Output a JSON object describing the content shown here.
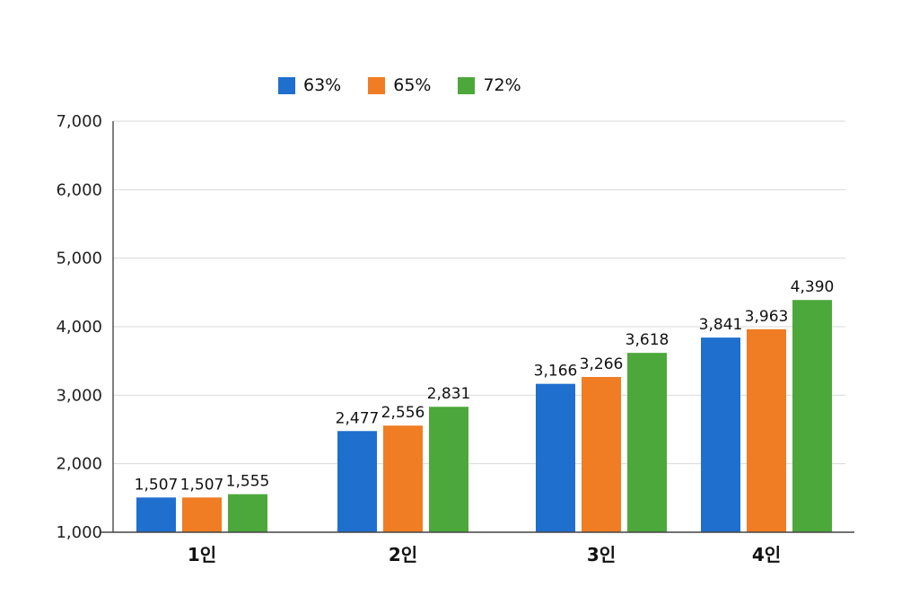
{
  "chart_data": {
    "type": "bar",
    "categories": [
      "1인",
      "2인",
      "3인",
      "4인"
    ],
    "series": [
      {
        "name": "63%",
        "color": "#1f6fcf",
        "values": [
          1507,
          2477,
          3166,
          3841
        ]
      },
      {
        "name": "65%",
        "color": "#f07c24",
        "values": [
          1507,
          2556,
          3266,
          3963
        ]
      },
      {
        "name": "72%",
        "color": "#4ca83a",
        "values": [
          1555,
          2831,
          3618,
          4390
        ]
      }
    ],
    "value_labels": [
      [
        "1,507",
        "2,477",
        "3,166",
        "3,841"
      ],
      [
        "1,507",
        "2,556",
        "3,266",
        "3,963"
      ],
      [
        "1,555",
        "2,831",
        "3,618",
        "4,390"
      ]
    ],
    "yticks": [
      1000,
      2000,
      3000,
      4000,
      5000,
      6000,
      7000
    ],
    "ytick_labels": [
      "1,000",
      "2,000",
      "3,000",
      "4,000",
      "5,000",
      "6,000",
      "7,000"
    ],
    "ylim": [
      1000,
      7000
    ],
    "grid": true,
    "legend_position": "top-center",
    "title": "",
    "xlabel": "",
    "ylabel": ""
  }
}
